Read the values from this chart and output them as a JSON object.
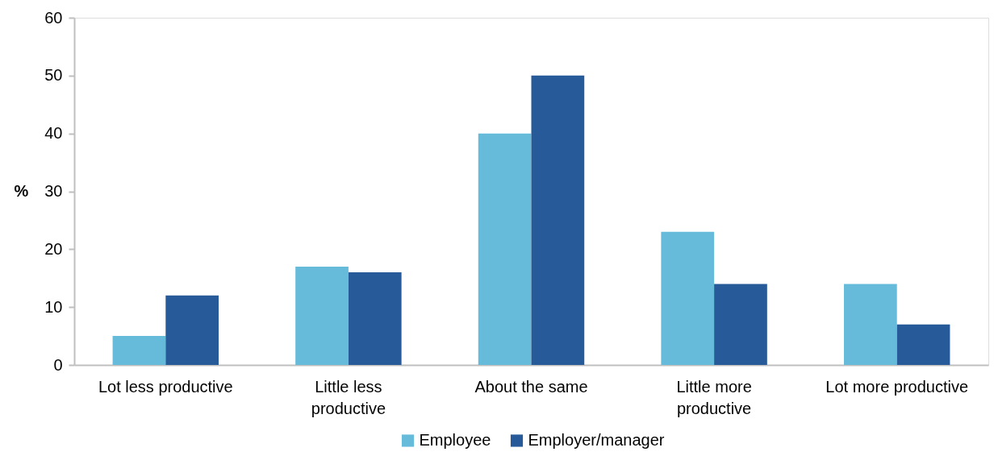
{
  "chart_data": {
    "type": "bar",
    "ylabel": "%",
    "categories": [
      "Lot less productive",
      "Little less productive",
      "About the same",
      "Little more productive",
      "Lot more productive"
    ],
    "series": [
      {
        "name": "Employee",
        "color": "#66bbdb",
        "values": [
          5,
          17,
          40,
          23,
          14
        ]
      },
      {
        "name": "Employer/manager",
        "color": "#275a98",
        "values": [
          12,
          16,
          50,
          14,
          7
        ]
      }
    ],
    "ylim": [
      0,
      60
    ],
    "yticks": [
      0,
      10,
      20,
      30,
      40,
      50,
      60
    ],
    "legend": "bottom"
  }
}
